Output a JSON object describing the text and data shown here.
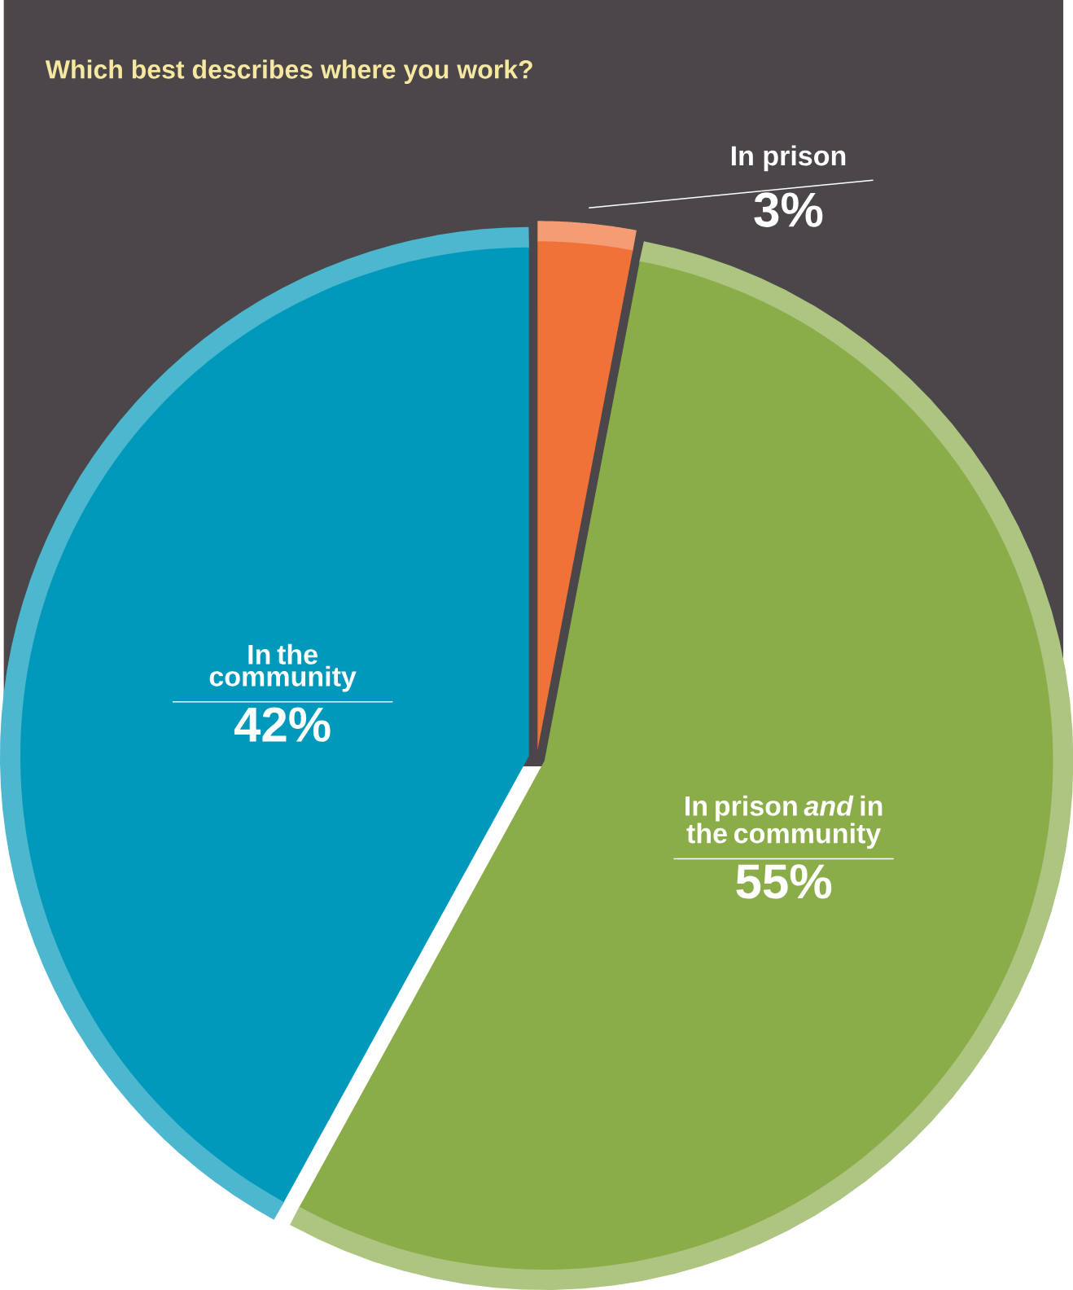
{
  "chart_data": {
    "type": "pie",
    "title": "Which best describes where you work?",
    "categories": [
      "In prison",
      "In prison *and* in the community",
      "In the community"
    ],
    "values": [
      3,
      55,
      42
    ],
    "colors": [
      "#f07238",
      "#8aad4a",
      "#0099bb"
    ],
    "value_labels": [
      "3%",
      "55%",
      "42%"
    ]
  }
}
